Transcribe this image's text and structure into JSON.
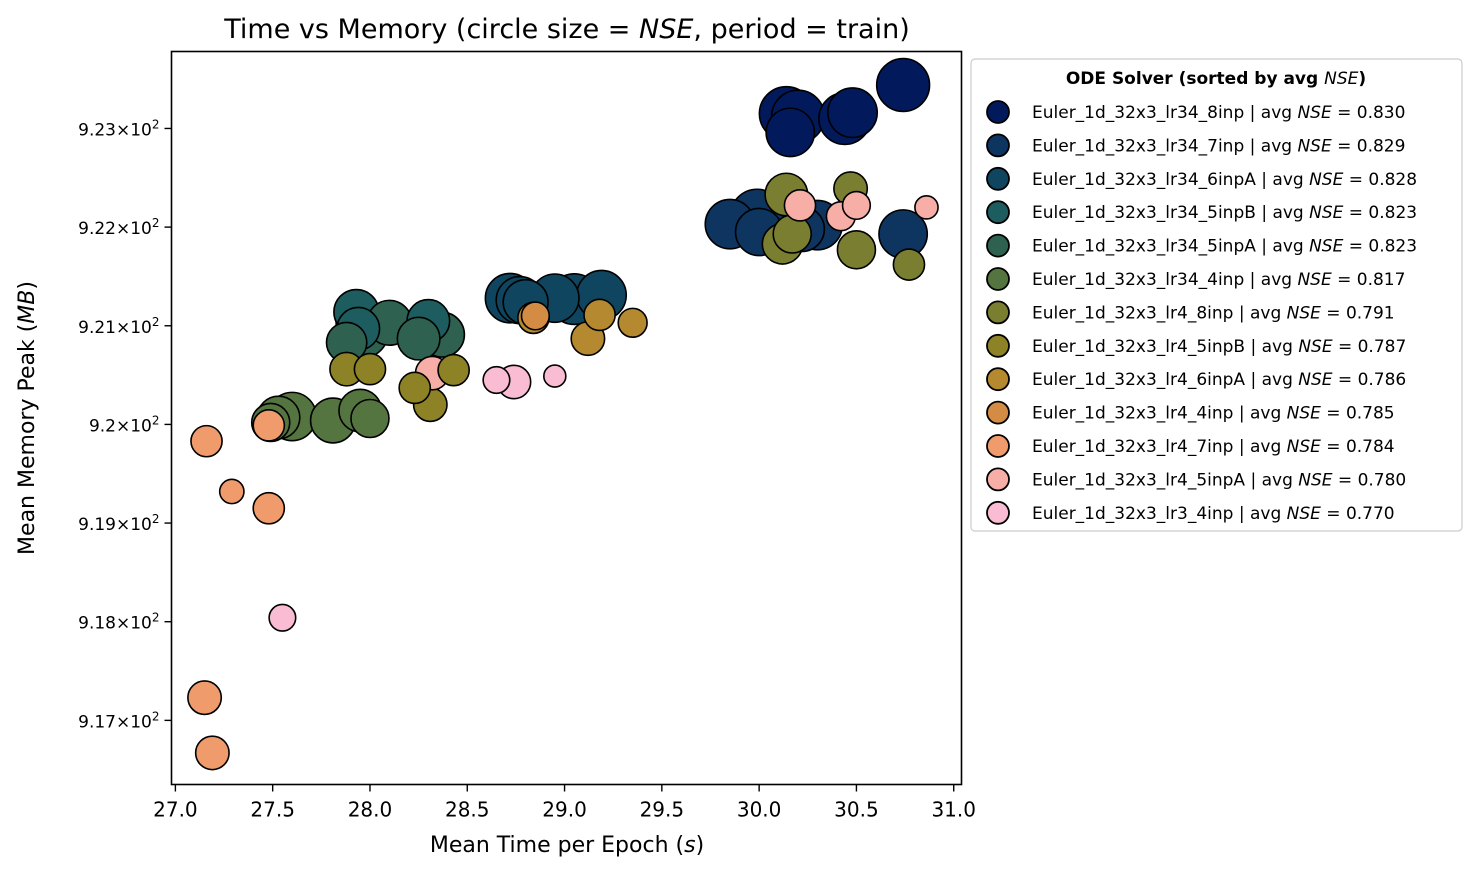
{
  "chart_data": {
    "type": "scatter",
    "title": "Time vs Memory (circle size = NSE, period = train)",
    "title_parts": {
      "prefix": "Time vs Memory (circle size = ",
      "italic": "NSE",
      "suffix": ", period = train)"
    },
    "xlabel": "Mean Time per Epoch (s)",
    "xlabel_parts": {
      "prefix": "Mean Time per Epoch (",
      "italic": "s",
      "suffix": ")"
    },
    "ylabel": "Mean Memory Peak (MB)",
    "ylabel_parts": {
      "prefix": "Mean Memory Peak (",
      "italic": "MB",
      "suffix": ")"
    },
    "xlim": [
      26.98,
      31.04
    ],
    "ylim": [
      916.35,
      923.78
    ],
    "x_ticks": [
      27.0,
      27.5,
      28.0,
      28.5,
      29.0,
      29.5,
      30.0,
      30.5,
      31.0
    ],
    "x_tick_labels": [
      "27.0",
      "27.5",
      "28.0",
      "28.5",
      "29.0",
      "29.5",
      "30.0",
      "30.5",
      "31.0"
    ],
    "y_ticks": [
      917,
      918,
      919,
      920,
      921,
      922,
      923
    ],
    "y_tick_mantissas": [
      "9.17",
      "9.18",
      "9.19",
      "9.2",
      "9.21",
      "9.22",
      "9.23"
    ],
    "y_tick_times": "×",
    "y_tick_base": "10",
    "y_tick_exp": "2",
    "grid": false,
    "legend": {
      "title_prefix": "ODE Solver (sorted by avg ",
      "title_italic": "NSE",
      "title_suffix": ")",
      "placement": "outside-right",
      "entry_sep": " | avg ",
      "entry_italic": "NSE",
      "entry_eq": " = "
    },
    "series": [
      {
        "name": "Euler_1d_32x3_lr34_8inp",
        "avg": "0.830",
        "color": "#021a5c",
        "points": [
          [
            30.74,
            923.44,
            0.835
          ],
          [
            30.14,
            923.15,
            0.84
          ],
          [
            30.2,
            923.12,
            0.835
          ],
          [
            30.44,
            923.1,
            0.83
          ],
          [
            30.48,
            923.16,
            0.82
          ],
          [
            30.16,
            922.96,
            0.815
          ]
        ]
      },
      {
        "name": "Euler_1d_32x3_lr34_7inp",
        "avg": "0.829",
        "color": "#0e3460",
        "points": [
          [
            29.85,
            922.03,
            0.82
          ],
          [
            29.99,
            922.11,
            0.84
          ],
          [
            30.0,
            921.95,
            0.81
          ],
          [
            30.18,
            922.03,
            0.815
          ],
          [
            30.3,
            922.02,
            0.82
          ],
          [
            30.74,
            921.93,
            0.815
          ],
          [
            30.22,
            921.98,
            0.8
          ]
        ]
      },
      {
        "name": "Euler_1d_32x3_lr34_6inpA",
        "avg": "0.828",
        "color": "#10455f",
        "points": [
          [
            28.72,
            921.28,
            0.82
          ],
          [
            28.8,
            921.24,
            0.8
          ],
          [
            28.95,
            921.28,
            0.815
          ],
          [
            29.05,
            921.27,
            0.825
          ],
          [
            29.19,
            921.31,
            0.82
          ],
          [
            28.77,
            921.26,
            0.81
          ]
        ]
      },
      {
        "name": "Euler_1d_32x3_lr34_5inpB",
        "avg": "0.823",
        "color": "#1d5d60",
        "points": [
          [
            27.93,
            921.14,
            0.8
          ],
          [
            27.95,
            921.03,
            0.815
          ],
          [
            28.3,
            921.05,
            0.79
          ],
          [
            27.94,
            920.97,
            0.79
          ]
        ]
      },
      {
        "name": "Euler_1d_32x3_lr34_5inpA",
        "avg": "0.823",
        "color": "#2e6150",
        "points": [
          [
            27.88,
            920.83,
            0.78
          ],
          [
            27.97,
            920.92,
            0.81
          ],
          [
            28.1,
            921.03,
            0.8
          ],
          [
            28.25,
            920.87,
            0.79
          ],
          [
            28.37,
            920.91,
            0.8
          ]
        ]
      },
      {
        "name": "Euler_1d_32x3_lr34_4inp",
        "avg": "0.817",
        "color": "#557540",
        "points": [
          [
            27.53,
            920.07,
            0.79
          ],
          [
            27.6,
            920.08,
            0.815
          ],
          [
            27.81,
            920.04,
            0.8
          ],
          [
            27.95,
            920.14,
            0.79
          ],
          [
            28.0,
            920.06,
            0.77
          ],
          [
            27.49,
            920.02,
            0.77
          ]
        ]
      },
      {
        "name": "Euler_1d_32x3_lr4_8inp",
        "avg": "0.791",
        "color": "#7a7e30",
        "points": [
          [
            30.14,
            922.33,
            0.79
          ],
          [
            30.17,
            921.93,
            0.77
          ],
          [
            30.12,
            921.83,
            0.78
          ],
          [
            30.5,
            921.77,
            0.77
          ],
          [
            30.47,
            922.39,
            0.75
          ],
          [
            30.77,
            921.62,
            0.74
          ]
        ]
      },
      {
        "name": "Euler_1d_32x3_lr4_5inpB",
        "avg": "0.787",
        "color": "#8d8225",
        "points": [
          [
            27.88,
            920.56,
            0.75
          ],
          [
            28.0,
            920.56,
            0.74
          ],
          [
            28.23,
            920.37,
            0.74
          ],
          [
            28.43,
            920.55,
            0.74
          ],
          [
            28.31,
            920.2,
            0.75
          ]
        ]
      },
      {
        "name": "Euler_1d_32x3_lr4_6inpA",
        "avg": "0.786",
        "color": "#b48930",
        "points": [
          [
            28.84,
            921.08,
            0.74
          ],
          [
            29.12,
            920.87,
            0.75
          ],
          [
            29.18,
            921.11,
            0.74
          ],
          [
            29.35,
            921.03,
            0.73
          ]
        ]
      },
      {
        "name": "Euler_1d_32x3_lr4_4inp",
        "avg": "0.785",
        "color": "#d48c44",
        "points": [
          [
            28.85,
            921.1,
            0.725
          ]
        ]
      },
      {
        "name": "Euler_1d_32x3_lr4_7inp",
        "avg": "0.784",
        "color": "#f09b6b",
        "points": [
          [
            27.16,
            919.83,
            0.74
          ],
          [
            27.29,
            919.32,
            0.71
          ],
          [
            27.48,
            919.15,
            0.74
          ],
          [
            27.15,
            917.23,
            0.75
          ],
          [
            27.19,
            916.67,
            0.75
          ],
          [
            27.48,
            919.99,
            0.74
          ]
        ]
      },
      {
        "name": "Euler_1d_32x3_lr4_5inpA",
        "avg": "0.780",
        "color": "#f6aea6",
        "points": [
          [
            30.21,
            922.22,
            0.74
          ],
          [
            30.42,
            922.11,
            0.73
          ],
          [
            30.5,
            922.22,
            0.725
          ],
          [
            30.86,
            922.2,
            0.705
          ],
          [
            28.32,
            920.52,
            0.75
          ]
        ]
      },
      {
        "name": "Euler_1d_32x3_lr3_4inp",
        "avg": "0.770",
        "color": "#f9bcd2",
        "points": [
          [
            28.65,
            920.45,
            0.72
          ],
          [
            28.74,
            920.43,
            0.75
          ],
          [
            28.95,
            920.49,
            0.7
          ],
          [
            27.55,
            918.04,
            0.72
          ]
        ]
      }
    ]
  }
}
